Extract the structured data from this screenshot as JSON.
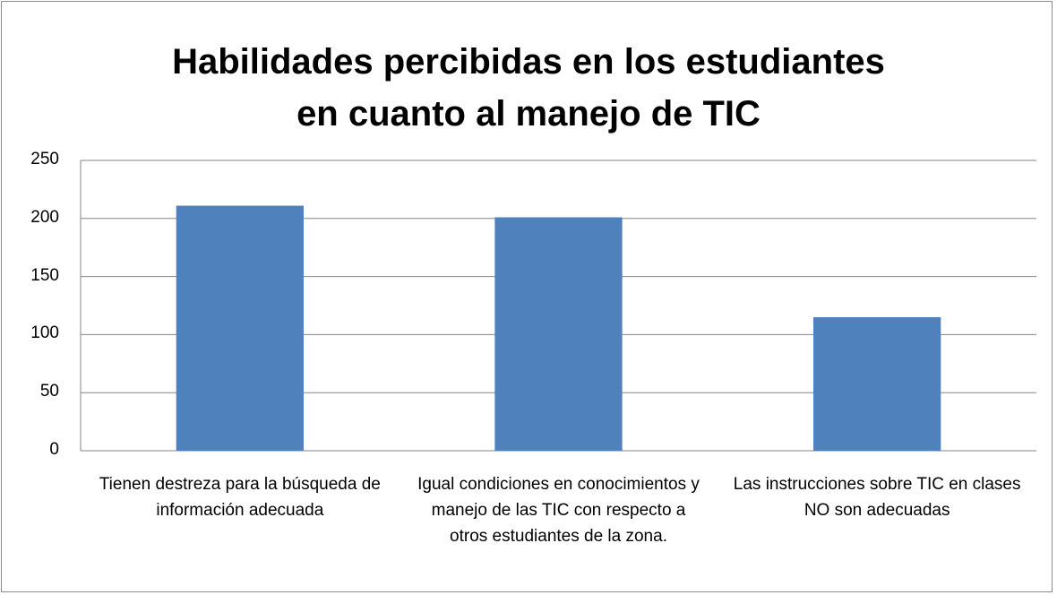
{
  "chart_data": {
    "type": "bar",
    "title": "Habilidades percibidas en los estudiantes en cuanto al manejo de TIC",
    "categories": [
      "Tienen destreza para la búsqueda de información adecuada",
      "Igual condiciones en conocimientos y manejo de las TIC con respecto a otros estudiantes de la zona.",
      "Las instrucciones sobre TIC en clases NO son adecuadas"
    ],
    "values": [
      211,
      201,
      115
    ],
    "color": "#4f81bd",
    "ylim": [
      0,
      250
    ],
    "yticks": [
      0,
      50,
      100,
      150,
      200,
      250
    ],
    "grid": true
  }
}
